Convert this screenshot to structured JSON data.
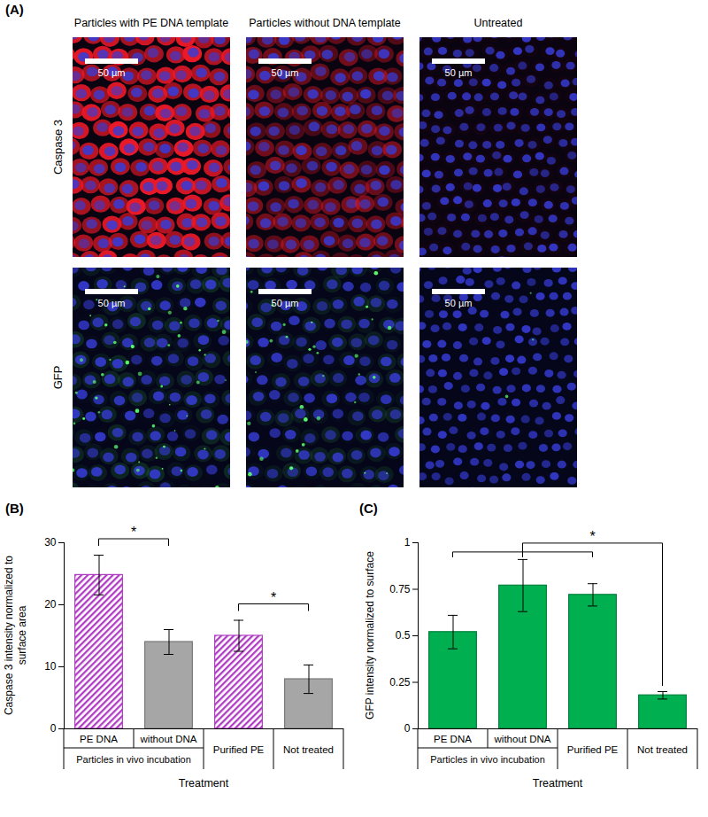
{
  "panel_a": {
    "label": "(A)",
    "columns": [
      "Particles with PE DNA template",
      "Particles without DNA template",
      "Untreated"
    ],
    "rows": [
      "Caspase 3",
      "GFP"
    ],
    "scale_bar": "50 µm"
  },
  "chart_data": [
    {
      "type": "bar",
      "panel_label": "(B)",
      "y_label": "Caspase 3 intensity normalized to surface area",
      "x_label": "Treatment",
      "categories": [
        "PE DNA",
        "without DNA",
        "Purified PE",
        "Not treated"
      ],
      "values": [
        24.8,
        14,
        15,
        8
      ],
      "errors": [
        3.2,
        2,
        2.5,
        2.3
      ],
      "colors": [
        "#b03cc3",
        "#a6a6a6",
        "#b03cc3",
        "#a6a6a6"
      ],
      "groups": [
        {
          "label": "Particles in vivo incubation",
          "categories": [
            "PE DNA",
            "without DNA"
          ]
        }
      ],
      "ylim": [
        0,
        30
      ],
      "yticks": [
        0,
        10,
        20,
        30
      ],
      "annotations": [
        {
          "text": "*",
          "between": [
            [
              "PE DNA"
            ],
            [
              "without DNA"
            ]
          ]
        },
        {
          "text": "*",
          "between": [
            [
              "Purified PE"
            ],
            [
              "Not treated"
            ]
          ]
        }
      ]
    },
    {
      "type": "bar",
      "panel_label": "(C)",
      "y_label": "GFP intensity normalized to surface",
      "x_label": "Treatment",
      "categories": [
        "PE DNA",
        "without DNA",
        "Purified PE",
        "Not treated"
      ],
      "values": [
        0.52,
        0.77,
        0.72,
        0.18
      ],
      "errors": [
        0.09,
        0.14,
        0.06,
        0.02
      ],
      "color": "#00b050",
      "groups": [
        {
          "label": "Particles in vivo incubation",
          "categories": [
            "PE DNA",
            "without DNA"
          ]
        }
      ],
      "ylim": [
        0,
        1
      ],
      "yticks": [
        0,
        0.25,
        0.5,
        0.75,
        1
      ],
      "annotations": [
        {
          "text": "*",
          "between": [
            [
              "PE DNA",
              "without DNA",
              "Purified PE"
            ],
            [
              "Not treated"
            ]
          ]
        }
      ]
    }
  ]
}
